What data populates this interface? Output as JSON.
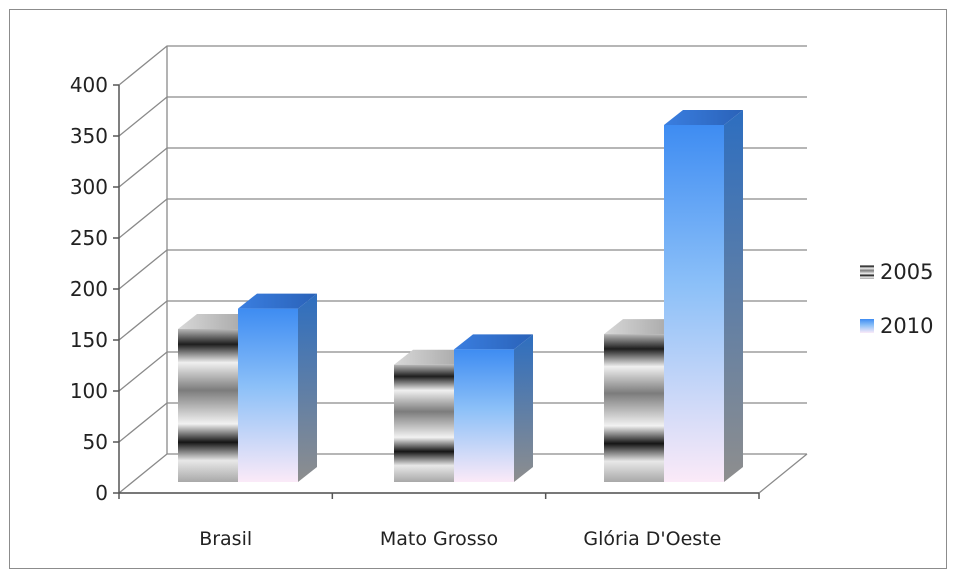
{
  "chart_data": {
    "type": "bar",
    "categories": [
      "Brasil",
      "Mato Grosso",
      "Glória D'Oeste"
    ],
    "series": [
      {
        "name": "2005",
        "values": [
          150,
          115,
          145
        ]
      },
      {
        "name": "2010",
        "values": [
          170,
          130,
          350
        ]
      }
    ],
    "ylim": [
      0,
      400
    ],
    "yticks": [
      0,
      50,
      100,
      150,
      200,
      250,
      300,
      350,
      400
    ],
    "grid": true,
    "legend_position": "right",
    "colors": {
      "2005": "#9a9a9a",
      "2010": "#4a8fe0"
    }
  }
}
